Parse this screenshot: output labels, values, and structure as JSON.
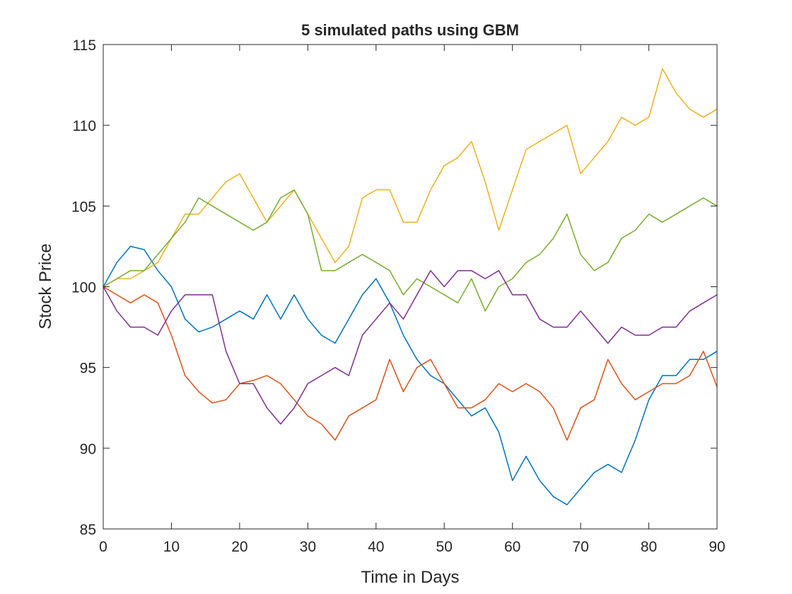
{
  "chart_data": {
    "type": "line",
    "title": "5 simulated paths using GBM",
    "xlabel": "Time in Days",
    "ylabel": "Stock Price",
    "x": [
      0,
      2,
      4,
      6,
      8,
      10,
      12,
      14,
      16,
      18,
      20,
      22,
      24,
      26,
      28,
      30,
      32,
      34,
      36,
      38,
      40,
      42,
      44,
      46,
      48,
      50,
      52,
      54,
      56,
      58,
      60,
      62,
      64,
      66,
      68,
      70,
      72,
      74,
      76,
      78,
      80,
      82,
      84,
      86,
      88,
      90
    ],
    "series": [
      {
        "color": "#0072BD",
        "values": [
          100,
          101.5,
          102.5,
          102.3,
          101,
          100,
          98,
          97.2,
          97.5,
          98,
          98.5,
          98,
          99.5,
          98,
          99.5,
          98,
          97,
          96.5,
          98,
          99.5,
          100.5,
          99,
          97,
          95.5,
          94.5,
          94,
          93,
          92,
          92.5,
          91,
          88,
          89.5,
          88,
          87,
          86.5,
          87.5,
          88.5,
          89,
          88.5,
          90.5,
          93,
          94.5,
          94.5,
          95.5,
          95.5,
          96
        ]
      },
      {
        "color": "#D95319",
        "values": [
          100,
          99.5,
          99,
          99.5,
          99,
          97,
          94.5,
          93.5,
          92.8,
          93,
          94,
          94.2,
          94.5,
          94,
          93,
          92,
          91.5,
          90.5,
          92,
          92.5,
          93,
          95.5,
          93.5,
          95,
          95.5,
          94,
          92.5,
          92.5,
          93,
          94,
          93.5,
          94,
          93.5,
          92.5,
          90.5,
          92.5,
          93,
          95.5,
          94,
          93,
          93.5,
          94,
          94,
          94.5,
          96,
          93.8
        ]
      },
      {
        "color": "#EDB120",
        "values": [
          100,
          100.5,
          100.5,
          101,
          101.5,
          103,
          104.5,
          104.5,
          105.5,
          106.5,
          107,
          105.5,
          104,
          105,
          106,
          104.5,
          103,
          101.5,
          102.5,
          105.5,
          106,
          106,
          104,
          104,
          106,
          107.5,
          108,
          109,
          106.5,
          103.5,
          106,
          108.5,
          109,
          109.5,
          110,
          107,
          108,
          109,
          110.5,
          110,
          110.5,
          113.5,
          112,
          111,
          110.5,
          111
        ]
      },
      {
        "color": "#77AC30",
        "values": [
          100,
          100.5,
          101,
          101,
          102,
          103,
          104,
          105.5,
          105,
          104.5,
          104,
          103.5,
          104,
          105.5,
          106,
          104.5,
          101,
          101,
          101.5,
          102,
          101.5,
          101,
          99.5,
          100.5,
          100,
          99.5,
          99,
          100.5,
          98.5,
          100,
          100.5,
          101.5,
          102,
          103,
          104.5,
          102,
          101,
          101.5,
          103,
          103.5,
          104.5,
          104,
          104.5,
          105,
          105.5,
          105
        ]
      },
      {
        "color": "#7E2F8E",
        "values": [
          100,
          98.5,
          97.5,
          97.5,
          97,
          98.5,
          99.5,
          99.5,
          99.5,
          96,
          94,
          94,
          92.5,
          91.5,
          92.5,
          94,
          94.5,
          95,
          94.5,
          97,
          98,
          99,
          98,
          99.5,
          101,
          100,
          101,
          101,
          100.5,
          101,
          99.5,
          99.5,
          98,
          97.5,
          97.5,
          98.5,
          97.5,
          96.5,
          97.5,
          97,
          97,
          97.5,
          97.5,
          98.5,
          99,
          99.5
        ]
      }
    ],
    "xlim": [
      0,
      90
    ],
    "xticks": [
      0,
      10,
      20,
      30,
      40,
      50,
      60,
      70,
      80,
      90
    ],
    "ylim": [
      85,
      115
    ],
    "yticks": [
      85,
      90,
      95,
      100,
      105,
      110,
      115
    ],
    "grid": false
  }
}
